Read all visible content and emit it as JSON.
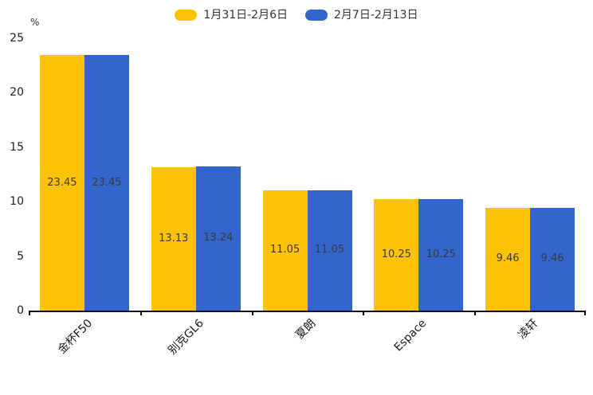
{
  "chart_data": {
    "type": "bar",
    "title": "",
    "categories": [
      "金杯F50",
      "别克GL6",
      "夏朗",
      "Espace",
      "凌轩"
    ],
    "series": [
      {
        "name": "1月31日-2月6日",
        "color": "#FCC306",
        "values": [
          23.45,
          13.13,
          11.05,
          10.25,
          9.46
        ]
      },
      {
        "name": "2月7日-2月13日",
        "color": "#3366CC",
        "values": [
          23.45,
          13.24,
          11.05,
          10.25,
          9.46
        ]
      }
    ],
    "xlabel": "",
    "ylabel": "%",
    "ylim": [
      0,
      25
    ],
    "yticks": [
      0,
      5,
      10,
      15,
      20,
      25
    ],
    "grid": false,
    "legend_position": "top-center",
    "value_labels": "inside-center",
    "value_label_color": "#3a3a3a",
    "axis_color": "#111111"
  }
}
